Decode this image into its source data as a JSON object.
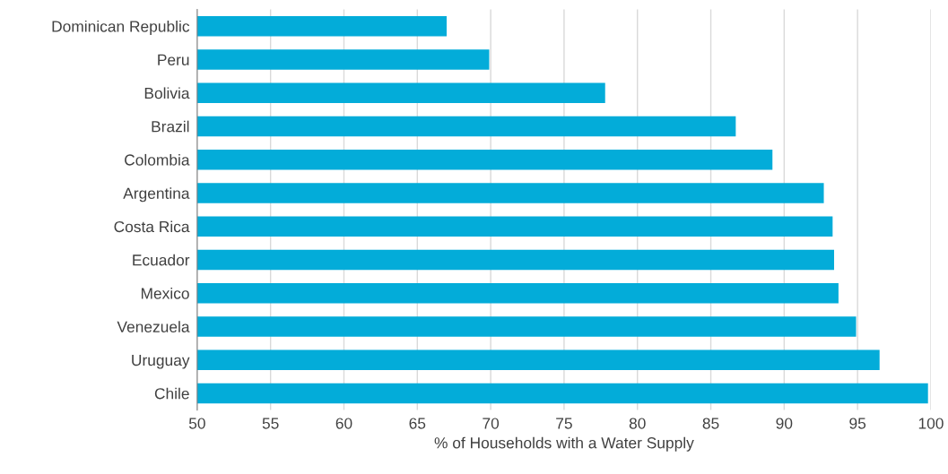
{
  "chart_data": {
    "type": "bar",
    "orientation": "horizontal",
    "xlabel": "% of Households with a Water Supply",
    "categories": [
      "Dominican Republic",
      "Peru",
      "Bolivia",
      "Brazil",
      "Colombia",
      "Argentina",
      "Costa Rica",
      "Ecuador",
      "Mexico",
      "Venezuela",
      "Uruguay",
      "Chile"
    ],
    "values": [
      67.0,
      69.9,
      77.8,
      86.7,
      89.2,
      92.7,
      93.3,
      93.4,
      93.7,
      94.9,
      96.5,
      99.8
    ],
    "color": "#03acd9",
    "xlim": [
      50,
      100
    ],
    "xticks": [
      50,
      55,
      60,
      65,
      70,
      75,
      80,
      85,
      90,
      95,
      100
    ],
    "grid": "x",
    "legend": false
  }
}
